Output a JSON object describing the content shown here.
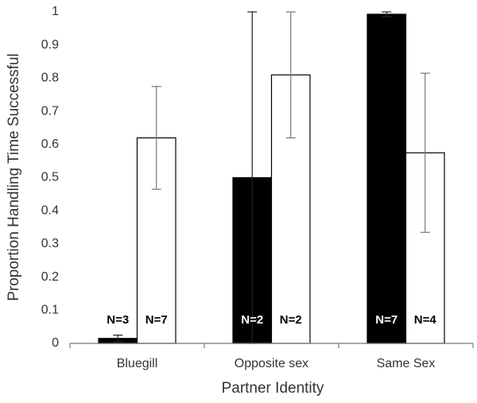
{
  "chart_data": {
    "type": "bar",
    "y_label": "Proportion Handling Time Successful",
    "x_label": "Partner Identity",
    "categories": [
      "Bluegill",
      "Opposite sex",
      "Same Sex"
    ],
    "series": [
      {
        "color": "#000000",
        "values": [
          0.015,
          0.5,
          0.993
        ],
        "errors": [
          0.01,
          0.5,
          0.007
        ],
        "labels": [
          "N=3",
          "N=2",
          "N=7"
        ]
      },
      {
        "color": "#ffffff",
        "values": [
          0.62,
          0.81,
          0.575
        ],
        "errors": [
          0.155,
          0.19,
          0.24
        ],
        "labels": [
          "N=7",
          "N=2",
          "N=4"
        ]
      }
    ],
    "ylim": [
      0,
      1
    ],
    "yticks": [
      0,
      0.1,
      0.2,
      0.3,
      0.4,
      0.5,
      0.6,
      0.7,
      0.8,
      0.9,
      1
    ]
  }
}
